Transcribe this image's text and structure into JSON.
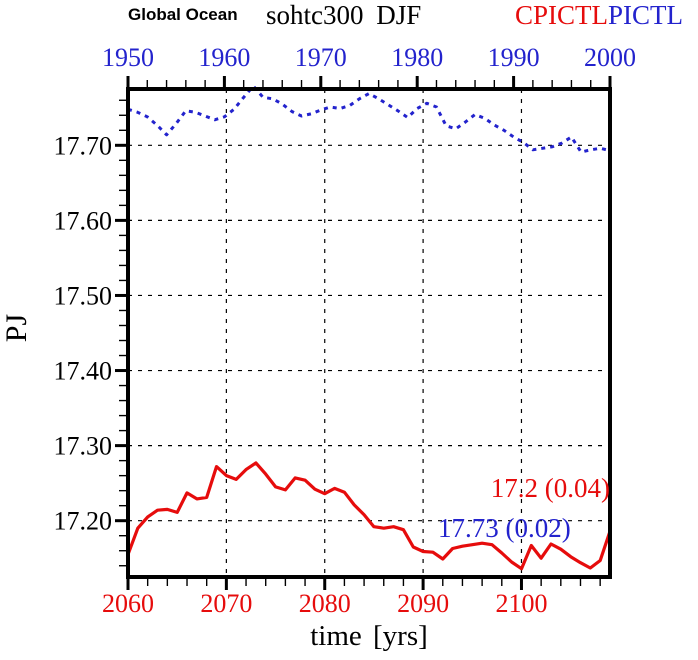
{
  "figure": {
    "title_left": "Global Ocean",
    "title_main": "sohtc300 DJF",
    "legend": [
      {
        "label": "CPICTL",
        "color": "#e60c0c"
      },
      {
        "label": "PICTL",
        "color": "#2323cd"
      }
    ]
  },
  "annotations": {
    "cpictl_stat": "17.2 (0.04)",
    "pictl_stat": "17.73 (0.02)"
  },
  "colors": {
    "cpictl_red": "#e60c0c",
    "pictl_blue": "#2323cd",
    "frame_black": "#000000"
  },
  "chart_data": {
    "type": "line",
    "title": "Global Ocean sohtc300 DJF",
    "ylabel": "PJ",
    "xlabel": "time [yrs]",
    "grid": true,
    "ylim": [
      17.125,
      17.775
    ],
    "y_ticks": [
      17.2,
      17.3,
      17.4,
      17.5,
      17.6,
      17.7
    ],
    "y_minor_step": 0.02,
    "axes": {
      "top": {
        "range": [
          1950,
          2000
        ],
        "ticks": [
          1950,
          1960,
          1970,
          1980,
          1990,
          2000
        ],
        "minor_step": 2,
        "color": "#2323cd"
      },
      "bottom": {
        "range": [
          2060,
          2109
        ],
        "ticks": [
          2060,
          2070,
          2080,
          2090,
          2100
        ],
        "minor_step": 2,
        "color": "#e60c0c"
      }
    },
    "series": [
      {
        "name": "PICTL",
        "axis": "top",
        "color": "#2323cd",
        "style": "dashed",
        "x_start": 1950,
        "x_step": 1,
        "values": [
          17.748,
          17.744,
          17.738,
          17.727,
          17.714,
          17.729,
          17.746,
          17.744,
          17.739,
          17.734,
          17.738,
          17.748,
          17.764,
          17.779,
          17.764,
          17.762,
          17.755,
          17.745,
          17.739,
          17.742,
          17.747,
          17.751,
          17.749,
          17.753,
          17.762,
          17.769,
          17.762,
          17.754,
          17.746,
          17.737,
          17.749,
          17.756,
          17.751,
          17.726,
          17.722,
          17.731,
          17.741,
          17.736,
          17.727,
          17.72,
          17.711,
          17.704,
          17.694,
          17.696,
          17.698,
          17.703,
          17.711,
          17.691,
          17.694,
          17.696,
          17.693
        ]
      },
      {
        "name": "CPICTL",
        "axis": "bottom",
        "color": "#e60c0c",
        "style": "solid",
        "x_start": 2060,
        "x_step": 1,
        "values": [
          17.155,
          17.19,
          17.205,
          17.214,
          17.215,
          17.211,
          17.237,
          17.229,
          17.231,
          17.272,
          17.26,
          17.255,
          17.268,
          17.277,
          17.262,
          17.245,
          17.241,
          17.257,
          17.254,
          17.242,
          17.236,
          17.243,
          17.238,
          17.221,
          17.208,
          17.192,
          17.19,
          17.192,
          17.188,
          17.165,
          17.159,
          17.158,
          17.149,
          17.163,
          17.166,
          17.168,
          17.17,
          17.168,
          17.157,
          17.145,
          17.136,
          17.167,
          17.15,
          17.169,
          17.162,
          17.152,
          17.144,
          17.137,
          17.147,
          17.186
        ]
      }
    ],
    "stats": {
      "CPICTL": {
        "mean": 17.2,
        "std": 0.04
      },
      "PICTL": {
        "mean": 17.73,
        "std": 0.02
      }
    }
  }
}
